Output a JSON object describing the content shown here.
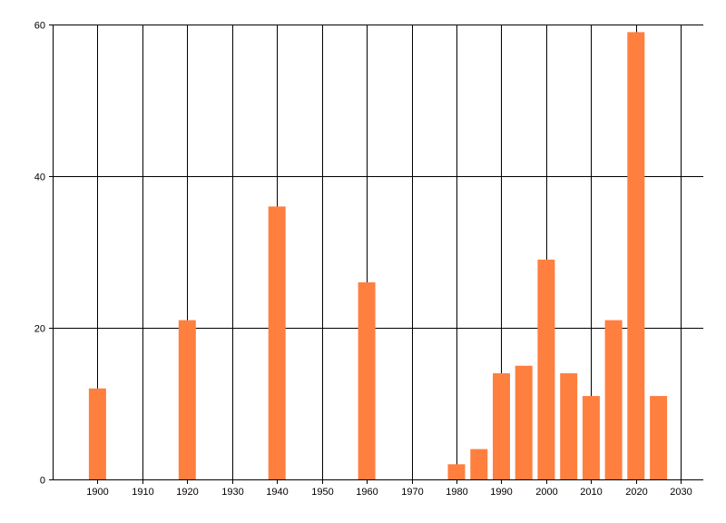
{
  "chart_data": {
    "type": "bar",
    "title": "",
    "xlabel": "",
    "ylabel": "",
    "x": [
      1900,
      1920,
      1940,
      1960,
      1980,
      1985,
      1990,
      1995,
      2000,
      2005,
      2010,
      2015,
      2020,
      2025
    ],
    "values": [
      12,
      21,
      36,
      26,
      2,
      4,
      14,
      15,
      29,
      14,
      11,
      21,
      59,
      11
    ],
    "xlim": [
      1890,
      2035
    ],
    "ylim": [
      0,
      60
    ],
    "x_ticks": [
      1900,
      1910,
      1920,
      1930,
      1940,
      1950,
      1960,
      1970,
      1980,
      1990,
      2000,
      2010,
      2020,
      2030
    ],
    "y_ticks": [
      0,
      20,
      40,
      60
    ],
    "bar_color": "#ff7f3f",
    "grid": true,
    "legend": "none"
  }
}
